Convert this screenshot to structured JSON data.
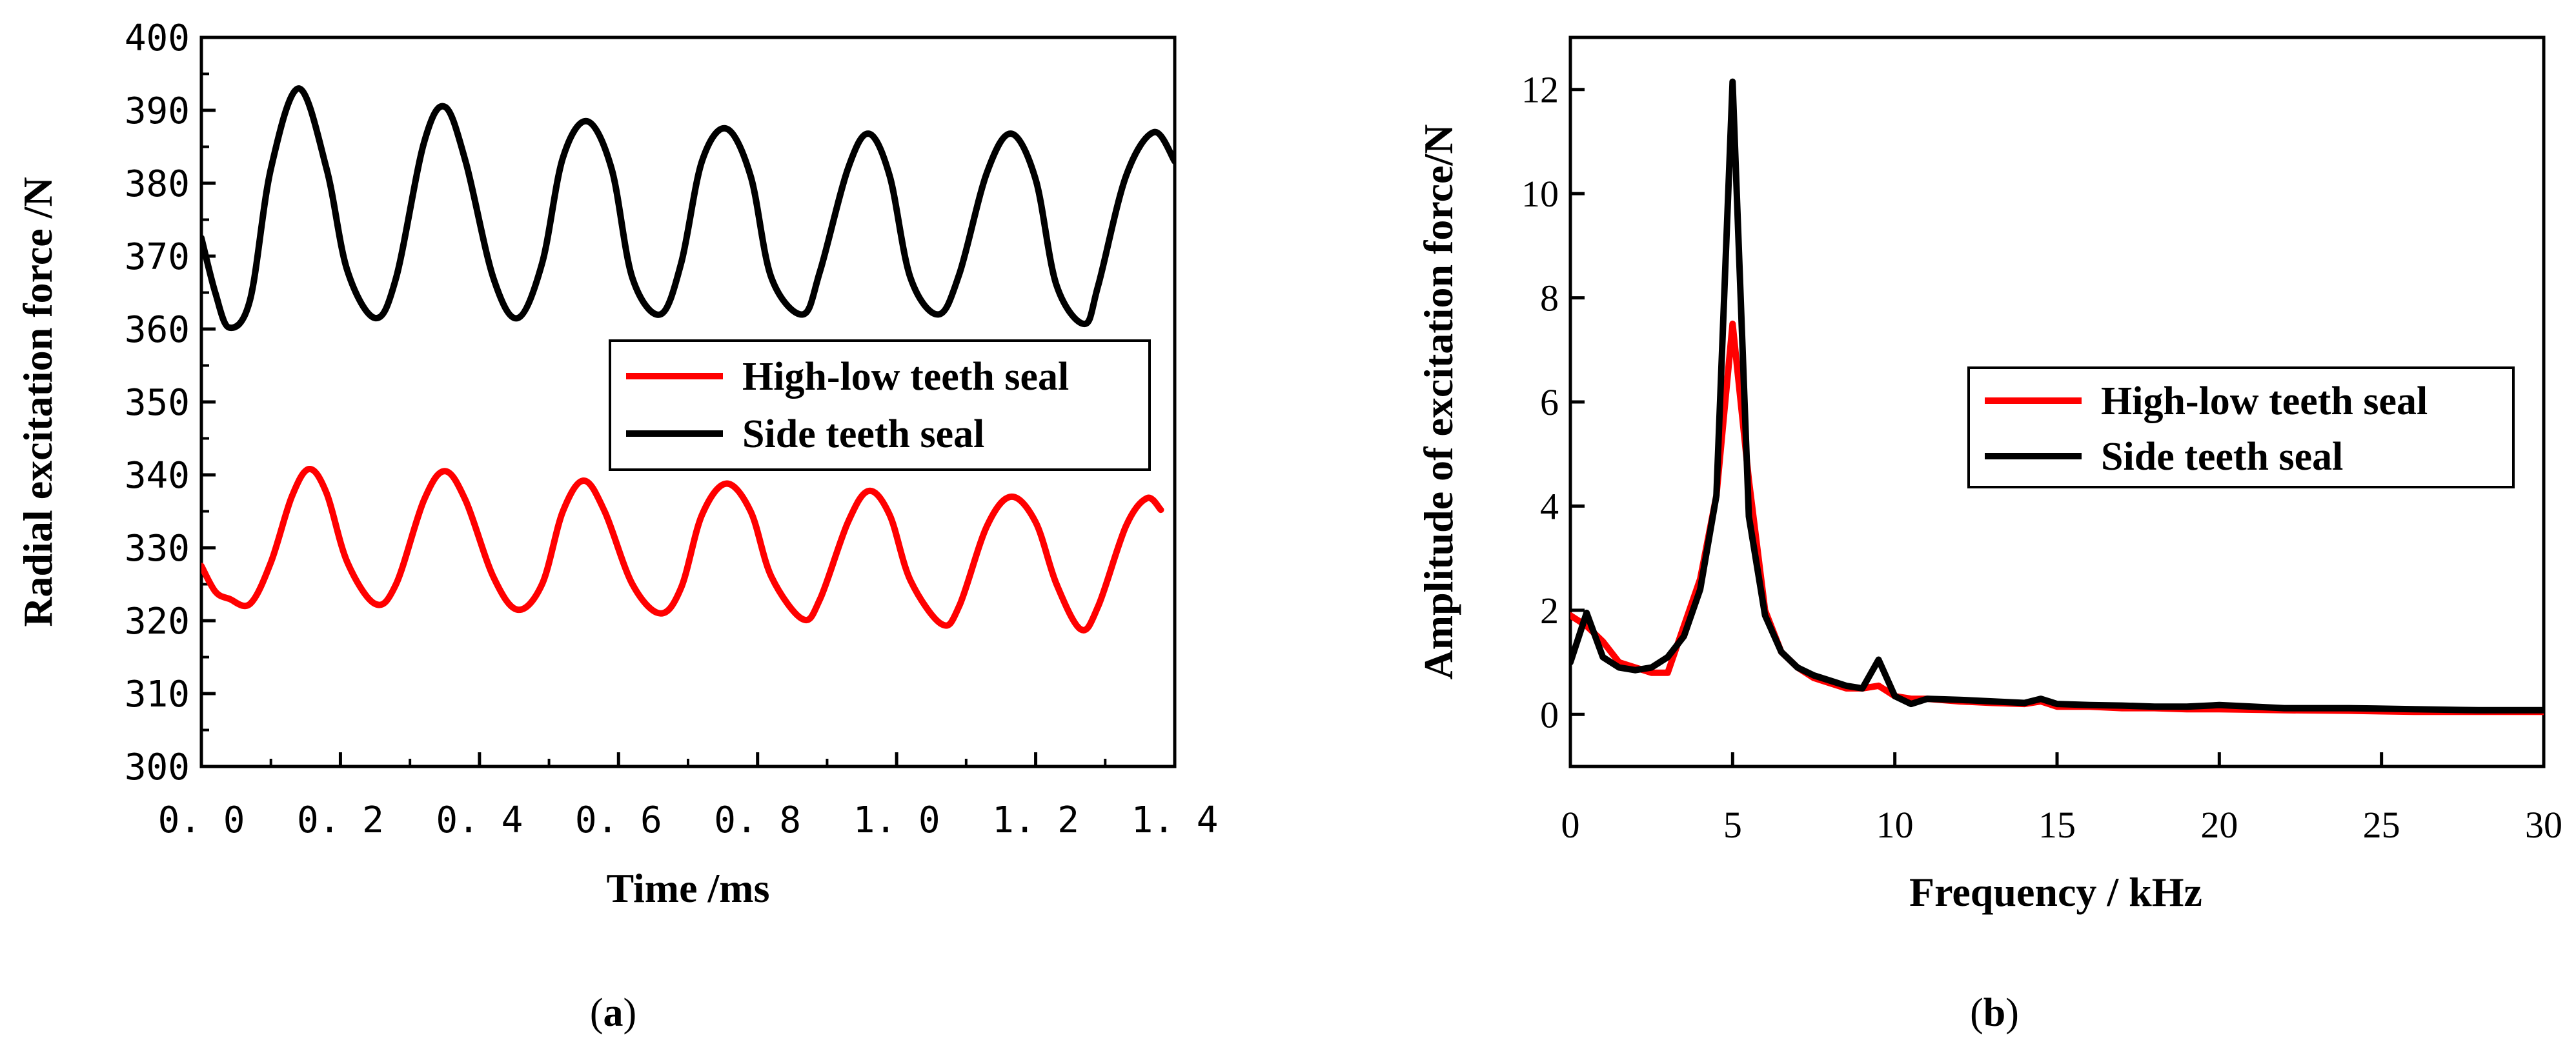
{
  "panels": [
    {
      "label": "a"
    },
    {
      "label": "b"
    }
  ],
  "chart_data": [
    {
      "type": "line",
      "panel": "a",
      "title": "",
      "xlabel": "Time /ms",
      "ylabel": "Radial excitation force /N",
      "xlim": [
        0.0,
        1.4
      ],
      "ylim": [
        300,
        400
      ],
      "xticks": [
        0.0,
        0.2,
        0.4,
        0.6,
        0.8,
        1.0,
        1.2,
        1.4
      ],
      "xtick_labels": [
        "0. 0",
        "0. 2",
        "0. 4",
        "0. 6",
        "0. 8",
        "1. 0",
        "1. 2",
        "1. 4"
      ],
      "yticks": [
        300,
        310,
        320,
        330,
        340,
        350,
        360,
        370,
        380,
        390,
        400
      ],
      "ytick_labels": [
        "300",
        "310",
        "320",
        "330",
        "340",
        "350",
        "360",
        "370",
        "380",
        "390",
        "400"
      ],
      "legend_position": "middle-right",
      "series": [
        {
          "name": "High-low teeth seal",
          "color": "#ff0000",
          "x": [
            0.0,
            0.02,
            0.04,
            0.07,
            0.1,
            0.13,
            0.155,
            0.18,
            0.21,
            0.25,
            0.28,
            0.32,
            0.35,
            0.38,
            0.42,
            0.455,
            0.49,
            0.52,
            0.55,
            0.58,
            0.62,
            0.66,
            0.69,
            0.72,
            0.755,
            0.79,
            0.82,
            0.865,
            0.89,
            0.93,
            0.96,
            0.99,
            1.02,
            1.065,
            1.09,
            1.13,
            1.165,
            1.2,
            1.23,
            1.265,
            1.29,
            1.33,
            1.36,
            1.38
          ],
          "values": [
            327.5,
            324.0,
            323.0,
            322.3,
            328.0,
            337.0,
            340.8,
            337.5,
            328.0,
            322.3,
            325.0,
            336.5,
            340.5,
            336.5,
            326.0,
            321.5,
            325.0,
            335.0,
            339.2,
            335.0,
            325.0,
            321.0,
            324.5,
            334.5,
            338.8,
            335.0,
            326.0,
            320.2,
            323.0,
            333.5,
            337.8,
            334.5,
            325.5,
            319.5,
            322.0,
            333.0,
            337.0,
            333.5,
            325.0,
            318.8,
            322.0,
            333.0,
            336.8,
            335.2
          ]
        },
        {
          "name": "Side teeth seal",
          "color": "#000000",
          "x": [
            0.0,
            0.02,
            0.04,
            0.07,
            0.1,
            0.14,
            0.18,
            0.21,
            0.25,
            0.28,
            0.32,
            0.35,
            0.38,
            0.42,
            0.455,
            0.49,
            0.52,
            0.555,
            0.59,
            0.62,
            0.66,
            0.69,
            0.72,
            0.755,
            0.79,
            0.82,
            0.865,
            0.89,
            0.93,
            0.96,
            0.99,
            1.02,
            1.06,
            1.09,
            1.13,
            1.165,
            1.2,
            1.23,
            1.27,
            1.29,
            1.33,
            1.37,
            1.4
          ],
          "values": [
            372.5,
            365.0,
            360.2,
            364.0,
            382.0,
            393.0,
            382.0,
            368.0,
            361.5,
            367.0,
            385.5,
            390.5,
            383.0,
            367.0,
            361.5,
            369.0,
            383.5,
            388.5,
            382.0,
            367.0,
            362.0,
            369.0,
            383.0,
            387.5,
            381.0,
            367.0,
            362.0,
            368.0,
            382.0,
            386.8,
            381.0,
            367.0,
            362.0,
            367.5,
            381.5,
            386.8,
            380.5,
            366.0,
            360.7,
            366.0,
            381.0,
            387.0,
            383.0
          ]
        }
      ]
    },
    {
      "type": "line",
      "panel": "b",
      "title": "",
      "xlabel": "Frequency / kHz",
      "ylabel": "Amplitude of excitation force/N",
      "xlim": [
        0,
        30
      ],
      "ylim": [
        -1,
        13
      ],
      "xticks": [
        0,
        5,
        10,
        15,
        20,
        25,
        30
      ],
      "xtick_labels": [
        "0",
        "5",
        "10",
        "15",
        "20",
        "25",
        "30"
      ],
      "yticks": [
        0,
        2,
        4,
        6,
        8,
        10,
        12
      ],
      "ytick_labels": [
        "0",
        "2",
        "4",
        "6",
        "8",
        "10",
        "12"
      ],
      "legend_position": "middle-right",
      "series": [
        {
          "name": "High-low teeth seal",
          "color": "#ff0000",
          "x": [
            0,
            0.5,
            1.0,
            1.5,
            2.0,
            2.5,
            3.0,
            3.5,
            4.0,
            4.5,
            5.0,
            5.5,
            6.0,
            6.5,
            7.0,
            7.5,
            8.0,
            8.5,
            9.0,
            9.5,
            10.0,
            10.5,
            11.0,
            12.0,
            13.0,
            14.0,
            14.5,
            15.0,
            16.0,
            17.0,
            18.0,
            19.0,
            20.0,
            22.0,
            24.0,
            26.0,
            28.0,
            30.0
          ],
          "values": [
            1.9,
            1.7,
            1.4,
            1.0,
            0.9,
            0.8,
            0.8,
            1.7,
            2.6,
            4.2,
            7.5,
            4.5,
            2.0,
            1.2,
            0.9,
            0.7,
            0.6,
            0.5,
            0.5,
            0.55,
            0.35,
            0.3,
            0.3,
            0.25,
            0.22,
            0.2,
            0.25,
            0.15,
            0.15,
            0.12,
            0.12,
            0.1,
            0.1,
            0.08,
            0.07,
            0.05,
            0.05,
            0.05
          ]
        },
        {
          "name": "Side teeth seal",
          "color": "#000000",
          "x": [
            0,
            0.5,
            1.0,
            1.5,
            2.0,
            2.5,
            3.0,
            3.5,
            4.0,
            4.5,
            5.0,
            5.5,
            6.0,
            6.5,
            7.0,
            7.5,
            8.0,
            8.5,
            9.0,
            9.5,
            10.0,
            10.5,
            11.0,
            12.0,
            13.0,
            14.0,
            14.5,
            15.0,
            16.0,
            17.0,
            18.0,
            19.0,
            20.0,
            22.0,
            24.0,
            26.0,
            28.0,
            30.0
          ],
          "values": [
            1.0,
            1.95,
            1.1,
            0.9,
            0.85,
            0.9,
            1.1,
            1.5,
            2.4,
            4.2,
            12.15,
            3.8,
            1.9,
            1.2,
            0.9,
            0.75,
            0.65,
            0.55,
            0.5,
            1.05,
            0.35,
            0.2,
            0.3,
            0.28,
            0.25,
            0.22,
            0.3,
            0.2,
            0.18,
            0.17,
            0.15,
            0.15,
            0.18,
            0.12,
            0.12,
            0.1,
            0.08,
            0.08
          ]
        }
      ]
    }
  ]
}
